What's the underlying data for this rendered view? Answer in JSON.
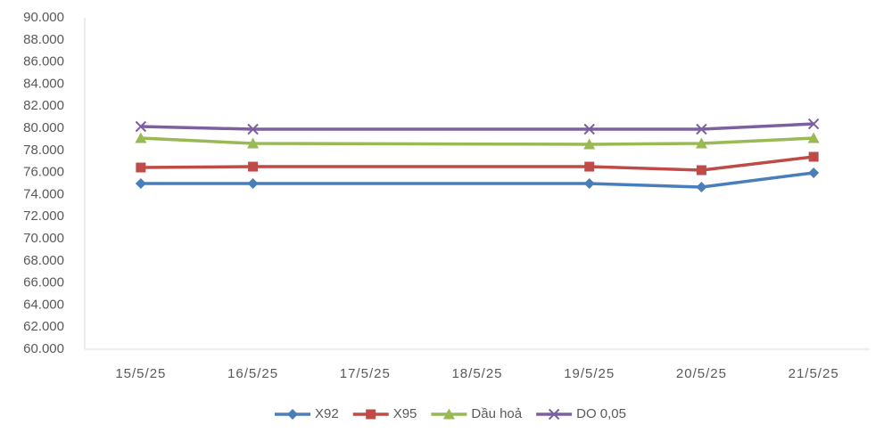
{
  "chart_data": {
    "type": "line",
    "x": [
      "15/5/25",
      "16/5/25",
      "19/5/25",
      "20/5/25",
      "21/5/25"
    ],
    "xticks": [
      "15/5/25",
      "16/5/25",
      "17/5/25",
      "18/5/25",
      "19/5/25",
      "20/5/25",
      "21/5/25"
    ],
    "ylim": [
      60000,
      90000
    ],
    "yticks": [
      {
        "value": 60000,
        "label": "60.000"
      },
      {
        "value": 62000,
        "label": "62.000"
      },
      {
        "value": 64000,
        "label": "64.000"
      },
      {
        "value": 66000,
        "label": "66.000"
      },
      {
        "value": 68000,
        "label": "68.000"
      },
      {
        "value": 70000,
        "label": "70.000"
      },
      {
        "value": 72000,
        "label": "72.000"
      },
      {
        "value": 74000,
        "label": "74.000"
      },
      {
        "value": 76000,
        "label": "76.000"
      },
      {
        "value": 78000,
        "label": "78.000"
      },
      {
        "value": 80000,
        "label": "80.000"
      },
      {
        "value": 82000,
        "label": "82.000"
      },
      {
        "value": 84000,
        "label": "84.000"
      },
      {
        "value": 86000,
        "label": "86.000"
      },
      {
        "value": 88000,
        "label": "88.000"
      },
      {
        "value": 90000,
        "label": "90.000"
      }
    ],
    "grid": false,
    "legend": "bottom",
    "series": [
      {
        "name": "X92",
        "color": "#4a7ebb",
        "marker": "diamond",
        "values": [
          75000,
          75000,
          75000,
          74680,
          75970
        ]
      },
      {
        "name": "X95",
        "color": "#be4b48",
        "marker": "square",
        "values": [
          76450,
          76530,
          76530,
          76210,
          77420
        ]
      },
      {
        "name": "Dầu hoả",
        "color": "#98b954",
        "marker": "triangle",
        "values": [
          79110,
          78630,
          78550,
          78630,
          79110
        ]
      },
      {
        "name": "DO 0,05",
        "color": "#7d60a0",
        "marker": "x",
        "values": [
          80160,
          79920,
          79920,
          79920,
          80400
        ]
      }
    ]
  }
}
